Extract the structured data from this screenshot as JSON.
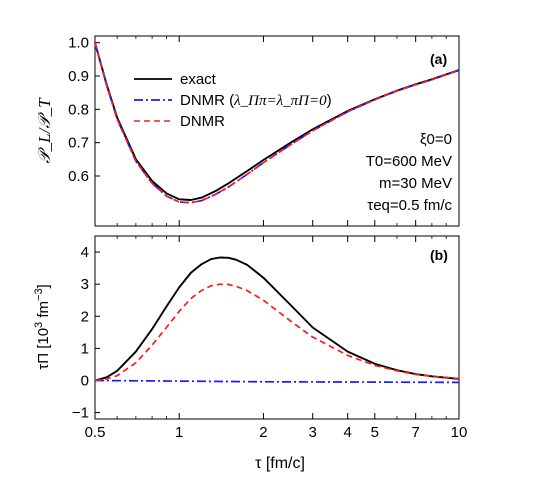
{
  "chart_data": [
    {
      "type": "line",
      "panel_label": "(a)",
      "ylabel": "𝒫_L/𝒫_T",
      "x_scale": "log",
      "xlim": [
        0.5,
        10
      ],
      "ylim": [
        0.45,
        1.02
      ],
      "y_ticks": [
        0.6,
        0.7,
        0.8,
        0.9,
        1.0
      ],
      "y_tick_labels": [
        "0.6",
        "0.7",
        "0.8",
        "0.9",
        "1.0"
      ],
      "legend": {
        "placement": "top-left",
        "entries": [
          {
            "label": "exact",
            "color": "#000000",
            "dash": "solid"
          },
          {
            "label": "DNMR (λΠπ=λπΠ=0)",
            "label_prefix": "DNMR (",
            "label_math": "λ_Ππ=λ_πΠ=0",
            "label_suffix": ")",
            "color": "#1a1aff",
            "dash": "dashdot"
          },
          {
            "label": "DNMR",
            "color": "#ff1a1a",
            "dash": "dashed"
          }
        ]
      },
      "annotations": [
        "ξ0=0",
        "T0=600 MeV",
        "m=30 MeV",
        "τeq=0.5 fm/c"
      ],
      "series": [
        {
          "name": "exact",
          "color": "#000000",
          "dash": "solid",
          "x": [
            0.5,
            0.55,
            0.6,
            0.7,
            0.8,
            0.9,
            1.0,
            1.1,
            1.2,
            1.35,
            1.5,
            1.75,
            2.0,
            2.5,
            3.0,
            4.0,
            5.0,
            6.0,
            7.0,
            8.0,
            10.0
          ],
          "y": [
            1.0,
            0.875,
            0.775,
            0.65,
            0.585,
            0.548,
            0.53,
            0.528,
            0.535,
            0.555,
            0.578,
            0.615,
            0.648,
            0.7,
            0.74,
            0.795,
            0.83,
            0.856,
            0.875,
            0.89,
            0.918
          ]
        },
        {
          "name": "DNMR (λΠπ=λπΠ=0)",
          "color": "#1a1aff",
          "dash": "dashdot",
          "x": [
            0.5,
            0.55,
            0.6,
            0.7,
            0.8,
            0.9,
            1.0,
            1.1,
            1.2,
            1.35,
            1.5,
            1.75,
            2.0,
            2.5,
            3.0,
            4.0,
            5.0,
            6.0,
            7.0,
            8.0,
            10.0
          ],
          "y": [
            1.0,
            0.872,
            0.77,
            0.644,
            0.578,
            0.54,
            0.522,
            0.52,
            0.526,
            0.545,
            0.567,
            0.605,
            0.64,
            0.694,
            0.736,
            0.793,
            0.829,
            0.855,
            0.874,
            0.889,
            0.917
          ]
        },
        {
          "name": "DNMR",
          "color": "#ff1a1a",
          "dash": "dashed",
          "x": [
            0.5,
            0.55,
            0.6,
            0.7,
            0.8,
            0.9,
            1.0,
            1.1,
            1.2,
            1.35,
            1.5,
            1.75,
            2.0,
            2.5,
            3.0,
            4.0,
            5.0,
            6.0,
            7.0,
            8.0,
            10.0
          ],
          "y": [
            1.0,
            0.872,
            0.77,
            0.644,
            0.578,
            0.54,
            0.522,
            0.52,
            0.526,
            0.545,
            0.567,
            0.605,
            0.64,
            0.694,
            0.736,
            0.793,
            0.829,
            0.855,
            0.874,
            0.889,
            0.917
          ]
        }
      ]
    },
    {
      "type": "line",
      "panel_label": "(b)",
      "xlabel": "τ [fm/c]",
      "ylabel": "τΠ [10³ fm⁻³]",
      "ylabel_prefix": "τΠ [10",
      "ylabel_exp1": "3",
      "ylabel_mid": " fm",
      "ylabel_exp2": "−3",
      "ylabel_suffix": "]",
      "x_scale": "log",
      "xlim": [
        0.5,
        10
      ],
      "ylim": [
        -1.2,
        4.5
      ],
      "x_ticks": [
        0.5,
        1,
        2,
        3,
        4,
        5,
        7,
        10
      ],
      "x_tick_labels": [
        "0.5",
        "1",
        "2",
        "3",
        "4",
        "5",
        "7",
        "10"
      ],
      "y_ticks": [
        -1,
        0,
        1,
        2,
        3,
        4
      ],
      "y_tick_labels": [
        "−1",
        "0",
        "1",
        "2",
        "3",
        "4"
      ],
      "series": [
        {
          "name": "exact",
          "color": "#000000",
          "dash": "solid",
          "x": [
            0.5,
            0.55,
            0.6,
            0.7,
            0.8,
            0.9,
            1.0,
            1.1,
            1.2,
            1.3,
            1.4,
            1.5,
            1.6,
            1.75,
            2.0,
            2.5,
            3.0,
            4.0,
            5.0,
            6.0,
            7.0,
            8.0,
            10.0
          ],
          "y": [
            0.0,
            0.1,
            0.3,
            0.9,
            1.6,
            2.3,
            2.9,
            3.35,
            3.62,
            3.78,
            3.83,
            3.82,
            3.76,
            3.6,
            3.2,
            2.35,
            1.65,
            0.9,
            0.52,
            0.32,
            0.2,
            0.13,
            0.05
          ]
        },
        {
          "name": "DNMR (λΠπ=λπΠ=0)",
          "color": "#1a1aff",
          "dash": "dashdot",
          "x": [
            0.5,
            1.0,
            2.0,
            5.0,
            10.0
          ],
          "y": [
            0.0,
            -0.02,
            -0.04,
            -0.05,
            -0.06
          ]
        },
        {
          "name": "DNMR",
          "color": "#ff1a1a",
          "dash": "dashed",
          "x": [
            0.5,
            0.55,
            0.6,
            0.7,
            0.8,
            0.9,
            1.0,
            1.1,
            1.2,
            1.3,
            1.4,
            1.5,
            1.6,
            1.75,
            2.0,
            2.5,
            3.0,
            4.0,
            5.0,
            6.0,
            7.0,
            8.0,
            10.0
          ],
          "y": [
            0.0,
            0.05,
            0.15,
            0.55,
            1.1,
            1.65,
            2.15,
            2.55,
            2.8,
            2.95,
            3.0,
            2.99,
            2.93,
            2.8,
            2.5,
            1.85,
            1.35,
            0.78,
            0.47,
            0.3,
            0.19,
            0.13,
            0.06
          ]
        }
      ]
    }
  ]
}
